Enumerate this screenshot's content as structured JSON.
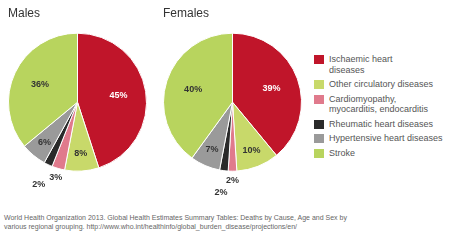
{
  "chart_data": [
    {
      "type": "pie",
      "title": "Males",
      "categories": [
        "Ischaemic heart\ndiseases",
        "Other circulatory diseases",
        "Cardiomyopathy,\nmyocarditis, endocarditis",
        "Rheumatic heart diseases",
        "Hypertensive heart diseases",
        "Stroke"
      ],
      "values": [
        45,
        8,
        3,
        2,
        6,
        36
      ],
      "value_labels": [
        "45%",
        "8%",
        "3%",
        "2%",
        "6%",
        "36%"
      ],
      "colors": [
        "#c0152a",
        "#c8d96a",
        "#e07a8c",
        "#2a2a2a",
        "#9a9a9a",
        "#b8d45e"
      ],
      "data_labels": true,
      "legend": "right",
      "annotations": [
        "World Health Organization 2013. Global Health Estimates Summary Tables: Deaths by Cause, Age and Sex by\nvarious regional grouping. http://www.who.int/healthinfo/global_burden_disease/projections/en/"
      ]
    },
    {
      "type": "pie",
      "title": "Females",
      "categories": [
        "Ischaemic heart\ndiseases",
        "Other circulatory diseases",
        "Cardiomyopathy,\nmyocarditis, endocarditis",
        "Rheumatic heart diseases",
        "Hypertensive heart diseases",
        "Stroke"
      ],
      "values": [
        39,
        10,
        2,
        2,
        7,
        40
      ],
      "value_labels": [
        "39%",
        "10%",
        "2%",
        "2%",
        "7%",
        "40%"
      ],
      "colors": [
        "#c0152a",
        "#c8d96a",
        "#e07a8c",
        "#2a2a2a",
        "#9a9a9a",
        "#b8d45e"
      ],
      "data_labels": true,
      "legend": "right"
    }
  ]
}
